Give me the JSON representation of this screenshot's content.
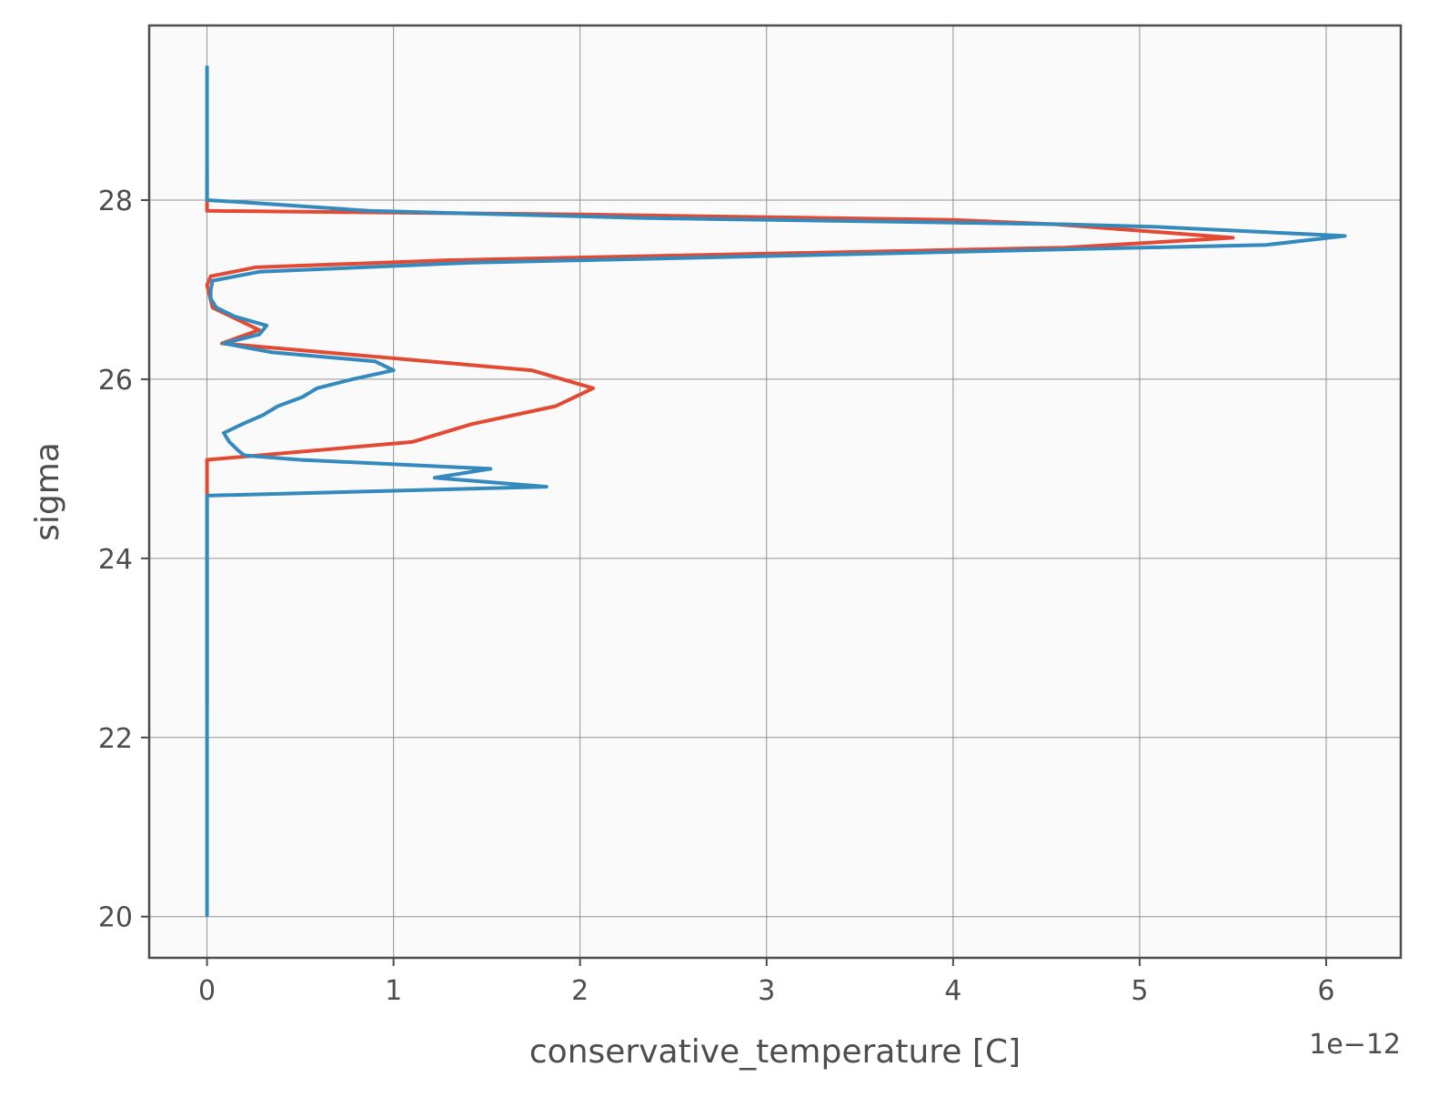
{
  "chart_data": {
    "type": "line",
    "xlabel": "conservative_temperature [C]",
    "ylabel": "sigma",
    "x_offset_label": "1e−12",
    "xlim": [
      -0.31,
      6.4
    ],
    "ylim": [
      19.54,
      29.95
    ],
    "xticks": [
      0,
      1,
      2,
      3,
      4,
      5,
      6
    ],
    "xtick_labels": [
      "0",
      "1",
      "2",
      "3",
      "4",
      "5",
      "6"
    ],
    "yticks": [
      20,
      22,
      24,
      26,
      28
    ],
    "ytick_labels": [
      "20",
      "22",
      "24",
      "26",
      "28"
    ],
    "grid": true,
    "colors": {
      "background": "#fafafa",
      "grid": "#808080",
      "spine": "#4d4d4d"
    },
    "series": [
      {
        "color": "#e24a33",
        "points": [
          [
            0,
            22.4
          ],
          [
            0,
            24.7
          ],
          [
            0,
            25.1
          ],
          [
            1.1,
            25.3
          ],
          [
            1.42,
            25.5
          ],
          [
            1.87,
            25.7
          ],
          [
            2.07,
            25.9
          ],
          [
            1.74,
            26.1
          ],
          [
            0.08,
            26.4
          ],
          [
            0.28,
            26.55
          ],
          [
            0.03,
            26.8
          ],
          [
            0,
            27.05
          ],
          [
            0.02,
            27.15
          ],
          [
            0.26,
            27.25
          ],
          [
            1.3,
            27.33
          ],
          [
            4.6,
            27.47
          ],
          [
            5.5,
            27.58
          ],
          [
            4.55,
            27.73
          ],
          [
            4.0,
            27.78
          ],
          [
            2.0,
            27.84
          ],
          [
            0,
            27.88
          ],
          [
            0,
            28.3
          ]
        ]
      },
      {
        "color": "#348abd",
        "points": [
          [
            0,
            20.0
          ],
          [
            0,
            24.7
          ],
          [
            1.82,
            24.8
          ],
          [
            1.22,
            24.9
          ],
          [
            1.52,
            25.0
          ],
          [
            0.5,
            25.1
          ],
          [
            0.2,
            25.15
          ],
          [
            0.17,
            25.2
          ],
          [
            0.12,
            25.3
          ],
          [
            0.09,
            25.4
          ],
          [
            0.19,
            25.5
          ],
          [
            0.3,
            25.6
          ],
          [
            0.38,
            25.7
          ],
          [
            0.51,
            25.8
          ],
          [
            0.59,
            25.9
          ],
          [
            0.78,
            26.0
          ],
          [
            1.0,
            26.1
          ],
          [
            0.9,
            26.2
          ],
          [
            0.35,
            26.3
          ],
          [
            0.09,
            26.4
          ],
          [
            0.28,
            26.5
          ],
          [
            0.32,
            26.6
          ],
          [
            0.15,
            26.7
          ],
          [
            0.05,
            26.8
          ],
          [
            0.02,
            26.9
          ],
          [
            0.02,
            27.0
          ],
          [
            0.03,
            27.1
          ],
          [
            0.28,
            27.2
          ],
          [
            1.4,
            27.3
          ],
          [
            5.68,
            27.5
          ],
          [
            6.1,
            27.6
          ],
          [
            5.1,
            27.7
          ],
          [
            4.6,
            27.73
          ],
          [
            2.35,
            27.8
          ],
          [
            0.87,
            27.88
          ],
          [
            0.17,
            27.98
          ],
          [
            0,
            28.0
          ],
          [
            0,
            29.5
          ]
        ]
      }
    ]
  }
}
